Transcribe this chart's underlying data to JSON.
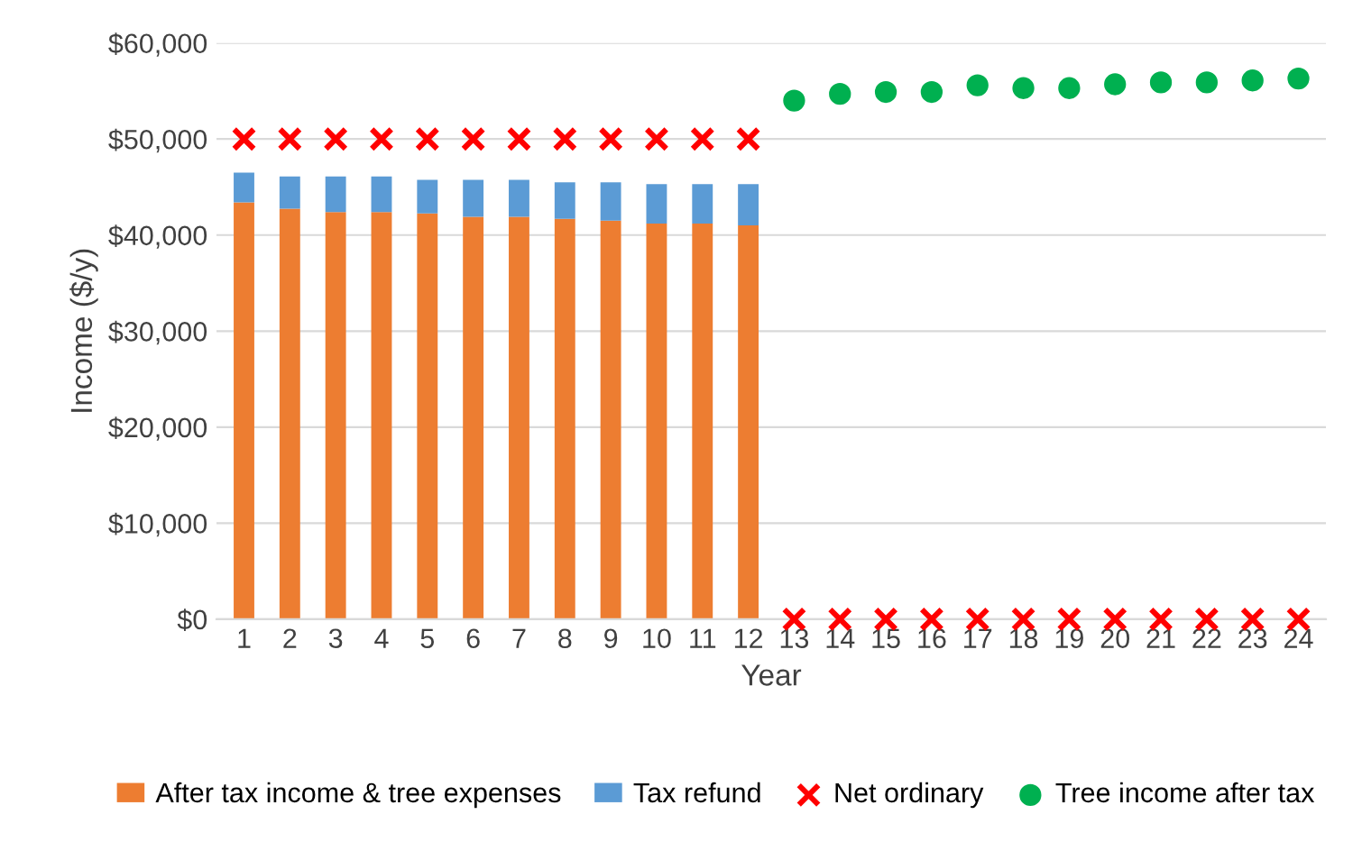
{
  "chart_data": {
    "type": "bar",
    "stacked": true,
    "xlabel": "Year",
    "ylabel": "Income ($/y)",
    "categories": [
      "1",
      "2",
      "3",
      "4",
      "5",
      "6",
      "7",
      "8",
      "9",
      "10",
      "11",
      "12",
      "13",
      "14",
      "15",
      "16",
      "17",
      "18",
      "19",
      "20",
      "21",
      "22",
      "23",
      "24"
    ],
    "ylim": [
      0,
      60000
    ],
    "yticks": [
      {
        "value": 0,
        "label": "$0"
      },
      {
        "value": 10000,
        "label": "$10,000"
      },
      {
        "value": 20000,
        "label": "$20,000"
      },
      {
        "value": 30000,
        "label": "$30,000"
      },
      {
        "value": 40000,
        "label": "$40,000"
      },
      {
        "value": 50000,
        "label": "$50,000"
      },
      {
        "value": 60000,
        "label": "$60,000"
      }
    ],
    "grid": "y",
    "legend": "bottom",
    "series": [
      {
        "name": "After tax income & tree expenses",
        "color": "#ed7d31",
        "values": [
          43400,
          42750,
          42400,
          42400,
          42250,
          41900,
          41900,
          41700,
          41500,
          41200,
          41200,
          41000,
          null,
          null,
          null,
          null,
          null,
          null,
          null,
          null,
          null,
          null,
          null,
          null
        ]
      },
      {
        "name": "Tax refund",
        "color": "#5b9bd5",
        "values": [
          3100,
          3350,
          3700,
          3700,
          3500,
          3850,
          3850,
          3800,
          4000,
          4100,
          4100,
          4300,
          null,
          null,
          null,
          null,
          null,
          null,
          null,
          null,
          null,
          null,
          null,
          null
        ]
      },
      {
        "name": "Net ordinary",
        "type": "scatter",
        "marker": "cross",
        "color": "#ff0000",
        "values": [
          50000,
          50000,
          50000,
          50000,
          50000,
          50000,
          50000,
          50000,
          50000,
          50000,
          50000,
          50000,
          0,
          0,
          0,
          0,
          0,
          0,
          0,
          0,
          0,
          0,
          0,
          0
        ]
      },
      {
        "name": "Tree income after tax",
        "type": "scatter",
        "marker": "circle",
        "color": "#00b050",
        "values": [
          null,
          null,
          null,
          null,
          null,
          null,
          null,
          null,
          null,
          null,
          null,
          null,
          54000,
          54700,
          54900,
          54900,
          55600,
          55300,
          55300,
          55700,
          55900,
          55900,
          56100,
          56300
        ]
      }
    ]
  }
}
